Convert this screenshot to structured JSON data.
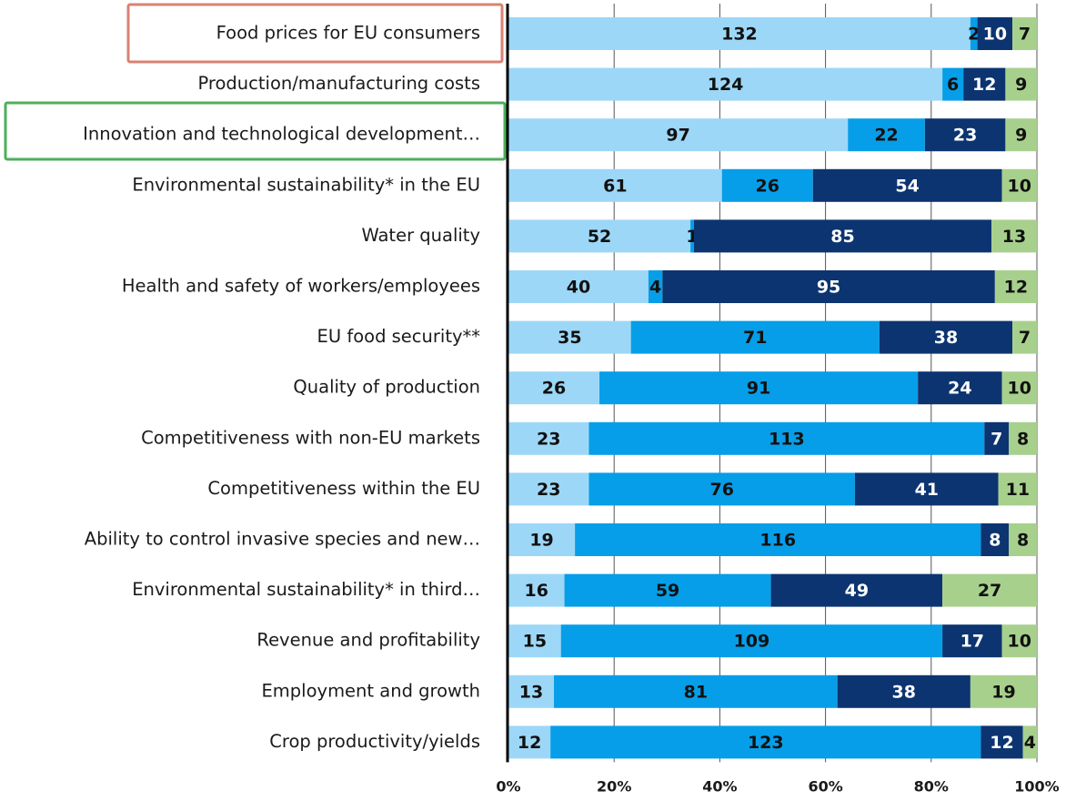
{
  "chart_data": {
    "type": "bar",
    "orientation": "horizontal",
    "stack": "percent",
    "categories": [
      "Food prices for EU consumers",
      "Production/manufacturing costs",
      "Innovation and technological development…",
      "Environmental sustainability* in the EU",
      "Water quality",
      "Health and safety of workers/employees",
      "EU food security**",
      "Quality of production",
      "Competitiveness with non-EU markets",
      "Competitiveness within the EU",
      "Ability to control invasive species and new…",
      "Environmental sustainability* in third…",
      "Revenue and profitability",
      "Employment and growth",
      "Crop productivity/yields"
    ],
    "series": [
      {
        "color": "#9dd7f7",
        "label_color": "#111111",
        "values": [
          132,
          124,
          97,
          61,
          52,
          40,
          35,
          26,
          23,
          23,
          19,
          16,
          15,
          13,
          12
        ]
      },
      {
        "color": "#069ee8",
        "label_color": "#111111",
        "values": [
          2,
          6,
          22,
          26,
          1,
          4,
          71,
          91,
          113,
          76,
          116,
          59,
          109,
          81,
          123
        ]
      },
      {
        "color": "#0c3470",
        "label_color": "#ffffff",
        "values": [
          10,
          12,
          23,
          54,
          85,
          95,
          38,
          24,
          7,
          41,
          8,
          49,
          17,
          38,
          12
        ]
      },
      {
        "color": "#a8d08d",
        "label_color": "#111111",
        "values": [
          7,
          9,
          9,
          10,
          13,
          12,
          7,
          10,
          8,
          11,
          8,
          27,
          10,
          19,
          4
        ]
      }
    ],
    "xlim": [
      0,
      100
    ],
    "xticks": [
      {
        "value": 0,
        "label": "0%"
      },
      {
        "value": 20,
        "label": "20%"
      },
      {
        "value": 40,
        "label": "40%"
      },
      {
        "value": 60,
        "label": "60%"
      },
      {
        "value": 80,
        "label": "80%"
      },
      {
        "value": 100,
        "label": "100%"
      }
    ],
    "grid": true
  }
}
